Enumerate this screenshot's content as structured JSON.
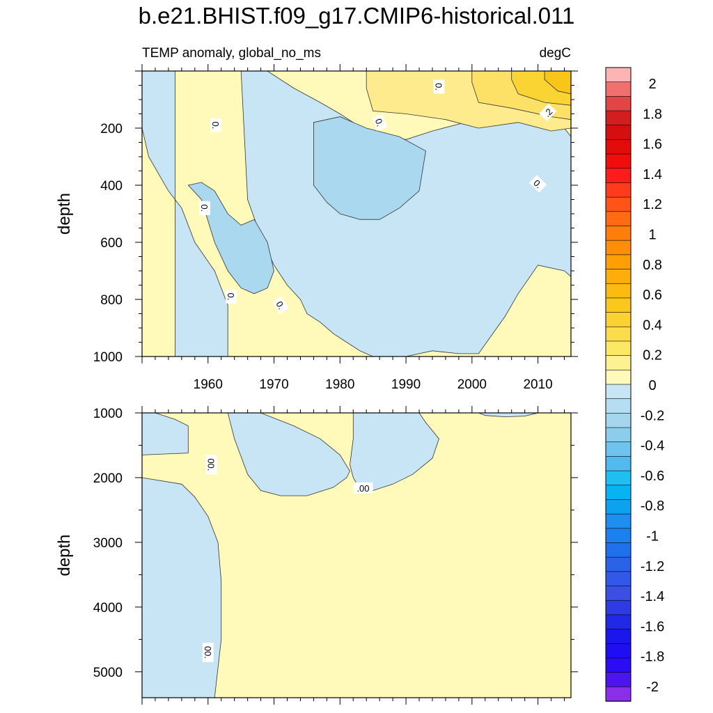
{
  "title": "b.e21.BHIST.f09_g17.CMIP6-historical.011",
  "colors": {
    "pos0": "#fffaba",
    "pos1": "#feeb8e",
    "pos2": "#fde066",
    "pos3": "#fad432",
    "pos4": "#f9c518",
    "neg0": "#c7e5f5",
    "neg1": "#a9d8ef"
  },
  "chart_data": [
    {
      "type": "contour",
      "subtitle_left": "TEMP anomaly, global_no_ms",
      "subtitle_right": "degC",
      "ylabel": "depth",
      "xlim": [
        1950,
        2015
      ],
      "ylim": [
        0,
        1000
      ],
      "y_inverted": true,
      "x_ticks": [
        1960,
        1970,
        1980,
        1990,
        2000,
        2010
      ],
      "y_ticks": [
        200,
        400,
        600,
        800,
        1000
      ],
      "contour_labels": [
        {
          "text": "0.",
          "x": 1961.2,
          "y": 190,
          "angle": 90
        },
        {
          "text": "0.",
          "x": 1959.5,
          "y": 480,
          "angle": 90
        },
        {
          "text": "0.",
          "x": 1963.5,
          "y": 790,
          "angle": 90
        },
        {
          "text": "0.",
          "x": 1971,
          "y": 820,
          "angle": 60
        },
        {
          "text": "0.",
          "x": 1986,
          "y": 180,
          "angle": 70
        },
        {
          "text": "0.",
          "x": 1995,
          "y": 55,
          "angle": 90
        },
        {
          "text": "0.",
          "x": 2010,
          "y": 395,
          "angle": 45
        },
        {
          "text": ".2",
          "x": 2011.5,
          "y": 145,
          "angle": -45
        }
      ],
      "regions": [
        {
          "level": "neg0",
          "x": [
            1955,
            1963,
            1963,
            1961,
            1958,
            1956,
            1954,
            1951,
            1950,
            1950,
            1955
          ],
          "y": [
            1000,
            1000,
            820,
            700,
            600,
            480,
            420,
            300,
            200,
            0,
            0
          ]
        },
        {
          "level": "neg0",
          "x": [
            1965,
            1969,
            1973,
            1977,
            1980,
            1984,
            1990,
            1994,
            1999,
            2005,
            2011,
            2014,
            2015,
            2015,
            2014,
            2010,
            2007,
            2005,
            2001,
            1998,
            1994,
            1990,
            1988,
            1985,
            1983,
            1981,
            1979,
            1977,
            1975,
            1974,
            1972,
            1970,
            1968,
            1966,
            1965
          ],
          "y": [
            0,
            0,
            60,
            110,
            150,
            210,
            240,
            210,
            180,
            150,
            190,
            200,
            230,
            720,
            700,
            680,
            780,
            860,
            990,
            990,
            980,
            1000,
            1000,
            1000,
            980,
            950,
            920,
            880,
            850,
            800,
            750,
            680,
            580,
            450,
            0
          ]
        },
        {
          "level": "neg1",
          "x": [
            1957,
            1959,
            1961,
            1963,
            1965,
            1967,
            1969,
            1970,
            1969,
            1967,
            1965,
            1963,
            1961,
            1959
          ],
          "y": [
            400,
            390,
            420,
            500,
            540,
            520,
            600,
            700,
            760,
            780,
            760,
            700,
            600,
            450
          ]
        },
        {
          "level": "neg1",
          "x": [
            1976,
            1980,
            1984,
            1989,
            1993,
            1992,
            1989,
            1986,
            1983,
            1980,
            1978,
            1976
          ],
          "y": [
            180,
            160,
            200,
            230,
            280,
            420,
            480,
            520,
            520,
            500,
            460,
            400
          ]
        },
        {
          "level": "pos1",
          "x": [
            1984,
            1989,
            1996,
            2001,
            2007,
            2012,
            2015,
            2015,
            2012,
            2007,
            2001,
            1996,
            1990,
            1985,
            1984
          ],
          "y": [
            0,
            0,
            0,
            0,
            0,
            0,
            0,
            200,
            210,
            180,
            200,
            170,
            150,
            140,
            60
          ]
        },
        {
          "level": "pos2",
          "x": [
            2000,
            2006,
            2012,
            2015,
            2015,
            2012,
            2006,
            2001,
            2000
          ],
          "y": [
            0,
            0,
            0,
            0,
            170,
            160,
            130,
            110,
            40
          ]
        },
        {
          "level": "pos3",
          "x": [
            2006,
            2011,
            2015,
            2015,
            2011,
            2007,
            2006
          ],
          "y": [
            0,
            0,
            0,
            120,
            110,
            80,
            30
          ]
        },
        {
          "level": "pos4",
          "x": [
            2011,
            2015,
            2015,
            2013,
            2011
          ],
          "y": [
            0,
            0,
            80,
            70,
            30
          ]
        }
      ]
    },
    {
      "type": "contour",
      "ylabel": "depth",
      "xlim": [
        1950,
        2015
      ],
      "ylim": [
        1000,
        5400
      ],
      "y_inverted": true,
      "y_ticks": [
        1000,
        2000,
        3000,
        4000,
        5000
      ],
      "contour_labels": [
        {
          "text": "00.",
          "x": 1960.5,
          "y": 1800,
          "angle": 90
        },
        {
          "text": ".00",
          "x": 1983.5,
          "y": 2160,
          "angle": 0
        },
        {
          "text": "00.",
          "x": 1960,
          "y": 4700,
          "angle": 90
        }
      ],
      "regions": [
        {
          "level": "neg0",
          "x": [
            1950,
            1956,
            1958,
            1960,
            1961.5,
            1962,
            1962,
            1961,
            1950
          ],
          "y": [
            2000,
            2100,
            2300,
            2600,
            3000,
            3600,
            4500,
            5400,
            5400
          ]
        },
        {
          "level": "neg0",
          "x": [
            1950,
            1952,
            1955,
            1957,
            1957,
            1950
          ],
          "y": [
            1000,
            1000,
            1100,
            1200,
            1620,
            1650
          ]
        },
        {
          "level": "neg0",
          "x": [
            1963,
            1968,
            1973,
            1977,
            1980,
            1981.5,
            1981,
            1979,
            1975,
            1971,
            1968,
            1966,
            1964,
            1963
          ],
          "y": [
            1000,
            1000,
            1200,
            1400,
            1650,
            1900,
            2000,
            2150,
            2280,
            2280,
            2200,
            1950,
            1400,
            1000
          ]
        },
        {
          "level": "neg0",
          "x": [
            1982,
            1987,
            1992,
            1993,
            1995,
            1994,
            1991,
            1988,
            1985,
            1983,
            1982,
            1981.5,
            1982,
            1982
          ],
          "y": [
            1000,
            1000,
            1000,
            1150,
            1400,
            1700,
            1950,
            2100,
            2200,
            2180,
            2000,
            1800,
            1400,
            1000
          ]
        },
        {
          "level": "neg0",
          "x": [
            2001,
            2005,
            2008,
            2010,
            2008,
            2005,
            2002
          ],
          "y": [
            1000,
            1000,
            1000,
            1000,
            1050,
            1060,
            1040
          ]
        }
      ]
    }
  ],
  "colorbar": {
    "labels": [
      "2",
      "1.8",
      "1.6",
      "1.4",
      "1.2",
      "1",
      "0.8",
      "0.6",
      "0.4",
      "0.2",
      "0",
      "-0.2",
      "-0.4",
      "-0.6",
      "-0.8",
      "-1",
      "-1.2",
      "-1.4",
      "-1.6",
      "-1.8",
      "-2"
    ],
    "colors": [
      "#fcb4b4",
      "#f07070",
      "#e14545",
      "#d21e1e",
      "#d50f0f",
      "#e40b0b",
      "#f20d0d",
      "#fd1c1c",
      "#fe3b1a",
      "#fe5418",
      "#fe6b12",
      "#fe7e0c",
      "#fe8d08",
      "#fea004",
      "#feae0a",
      "#fdbb12",
      "#fac81c",
      "#fad232",
      "#fbdc4d",
      "#fde866",
      "#fef191",
      "#fffaba",
      "#c7e5f5",
      "#b5def2",
      "#a5d6ee",
      "#8dcdec",
      "#6fc4ed",
      "#51bbf0",
      "#1ec0f2",
      "#07b4f2",
      "#0ca2f0",
      "#1e8ff0",
      "#1c80ee",
      "#1f70ec",
      "#2a62e8",
      "#3158e6",
      "#3b4fe2",
      "#2e3ae4",
      "#2228e8",
      "#1a16ee",
      "#1f0ef4",
      "#2c0cf4",
      "#4c14ee",
      "#8a2ee8"
    ]
  }
}
